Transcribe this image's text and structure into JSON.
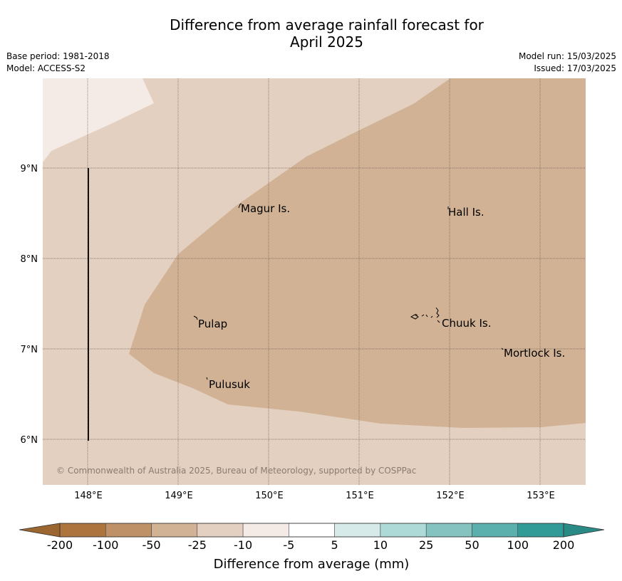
{
  "header": {
    "title_line1": "Difference from average rainfall forecast for",
    "title_line2": "April 2025",
    "base_period": "Base period: 1981-2018",
    "model": "Model: ACCESS-S2",
    "model_run": "Model run: 15/03/2025",
    "issued": "Issued: 17/03/2025"
  },
  "map": {
    "lat_labels": [
      "9°N",
      "8°N",
      "7°N",
      "6°N"
    ],
    "lon_labels": [
      "148°E",
      "149°E",
      "150°E",
      "151°E",
      "152°E",
      "153°E"
    ],
    "places": [
      {
        "name": "Magur Is."
      },
      {
        "name": "Hall Is."
      },
      {
        "name": "Pulap"
      },
      {
        "name": "Chuuk Is."
      },
      {
        "name": "Mortlock Is."
      },
      {
        "name": "Pulusuk"
      }
    ],
    "credit": "© Commonwealth of Australia 2025, Bureau of Meteorology, supported by COSPPac",
    "colors": {
      "cat_minus10_minus5": "#f5ebe6",
      "cat_minus25_minus10": "#e3d0c0",
      "cat_minus50_minus25": "#d1b294"
    }
  },
  "colorbar": {
    "title": "Difference from average (mm)",
    "ticks": [
      "-200",
      "-100",
      "-50",
      "-25",
      "-10",
      "-5",
      "5",
      "10",
      "25",
      "50",
      "100",
      "200"
    ],
    "colors": [
      "#ae743e",
      "#bf9166",
      "#d1b294",
      "#e3d0c0",
      "#f5ebe6",
      "#ffffff",
      "#d6ebe9",
      "#add9d6",
      "#84c3c0",
      "#5bafac",
      "#319b97"
    ],
    "under_color": "#9c6630",
    "over_color": "#2a8a86"
  }
}
